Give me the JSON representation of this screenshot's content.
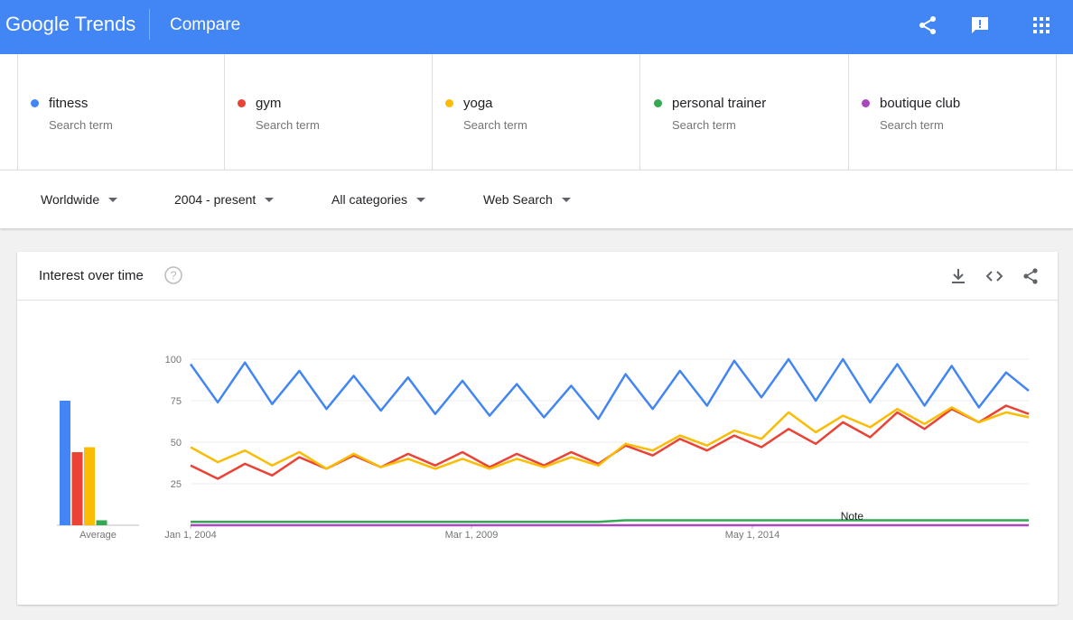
{
  "header": {
    "logo_text": "Google Trends",
    "title": "Compare",
    "icons": [
      "share-icon",
      "feedback-icon",
      "apps-icon"
    ],
    "color": "#4285f4"
  },
  "terms": [
    {
      "name": "fitness",
      "subtitle": "Search term",
      "color": "#4285f4"
    },
    {
      "name": "gym",
      "subtitle": "Search term",
      "color": "#ea4335"
    },
    {
      "name": "yoga",
      "subtitle": "Search term",
      "color": "#fbbc04"
    },
    {
      "name": "personal trainer",
      "subtitle": "Search term",
      "color": "#34a853"
    },
    {
      "name": "boutique club",
      "subtitle": "Search term",
      "color": "#ab47bc"
    }
  ],
  "filters": {
    "region": "Worldwide",
    "time": "2004 - present",
    "category": "All categories",
    "search_type": "Web Search"
  },
  "card": {
    "title": "Interest over time",
    "icons": [
      "help-icon",
      "download-icon",
      "embed-icon",
      "share-icon"
    ]
  },
  "chart_data": {
    "type": "line",
    "title": "Interest over time",
    "ylim": [
      0,
      100
    ],
    "y_ticks": [
      25,
      50,
      75,
      100
    ],
    "x_ticks": [
      "Jan 1, 2004",
      "Mar 1, 2009",
      "May 1, 2014"
    ],
    "x_range": [
      "2004-01",
      "2019-06"
    ],
    "grid": true,
    "annotation": "Note",
    "average": {
      "label": "Average",
      "values": [
        75,
        44,
        47,
        3,
        0
      ]
    },
    "series": [
      {
        "name": "fitness",
        "color": "#4285f4",
        "x": [
          "2004-01",
          "2004-07",
          "2005-01",
          "2005-07",
          "2006-01",
          "2006-07",
          "2007-01",
          "2007-07",
          "2008-01",
          "2008-07",
          "2009-01",
          "2009-07",
          "2010-01",
          "2010-07",
          "2011-01",
          "2011-07",
          "2012-01",
          "2012-07",
          "2013-01",
          "2013-07",
          "2014-01",
          "2014-07",
          "2015-01",
          "2015-07",
          "2016-01",
          "2016-07",
          "2017-01",
          "2017-07",
          "2018-01",
          "2018-07",
          "2019-01",
          "2019-06"
        ],
        "values": [
          97,
          74,
          98,
          73,
          93,
          70,
          90,
          69,
          89,
          67,
          87,
          66,
          85,
          65,
          84,
          64,
          91,
          70,
          93,
          72,
          99,
          77,
          100,
          75,
          100,
          74,
          97,
          72,
          96,
          71,
          92,
          81
        ]
      },
      {
        "name": "gym",
        "color": "#ea4335",
        "x": [
          "2004-01",
          "2004-07",
          "2005-01",
          "2005-07",
          "2006-01",
          "2006-07",
          "2007-01",
          "2007-07",
          "2008-01",
          "2008-07",
          "2009-01",
          "2009-07",
          "2010-01",
          "2010-07",
          "2011-01",
          "2011-07",
          "2012-01",
          "2012-07",
          "2013-01",
          "2013-07",
          "2014-01",
          "2014-07",
          "2015-01",
          "2015-07",
          "2016-01",
          "2016-07",
          "2017-01",
          "2017-07",
          "2018-01",
          "2018-07",
          "2019-01",
          "2019-06"
        ],
        "values": [
          36,
          28,
          37,
          30,
          41,
          34,
          42,
          35,
          43,
          36,
          44,
          35,
          43,
          36,
          44,
          37,
          48,
          42,
          52,
          45,
          54,
          47,
          58,
          49,
          62,
          53,
          68,
          58,
          70,
          62,
          72,
          67
        ]
      },
      {
        "name": "yoga",
        "color": "#fbbc04",
        "x": [
          "2004-01",
          "2004-07",
          "2005-01",
          "2005-07",
          "2006-01",
          "2006-07",
          "2007-01",
          "2007-07",
          "2008-01",
          "2008-07",
          "2009-01",
          "2009-07",
          "2010-01",
          "2010-07",
          "2011-01",
          "2011-07",
          "2012-01",
          "2012-07",
          "2013-01",
          "2013-07",
          "2014-01",
          "2014-07",
          "2015-01",
          "2015-07",
          "2016-01",
          "2016-07",
          "2017-01",
          "2017-07",
          "2018-01",
          "2018-07",
          "2019-01",
          "2019-06"
        ],
        "values": [
          47,
          38,
          45,
          36,
          44,
          34,
          43,
          35,
          40,
          34,
          40,
          34,
          40,
          35,
          41,
          36,
          49,
          45,
          54,
          48,
          57,
          52,
          68,
          56,
          66,
          59,
          70,
          61,
          71,
          62,
          68,
          65
        ]
      },
      {
        "name": "personal trainer",
        "color": "#34a853",
        "x": [
          "2004-01",
          "2004-07",
          "2005-01",
          "2005-07",
          "2006-01",
          "2006-07",
          "2007-01",
          "2007-07",
          "2008-01",
          "2008-07",
          "2009-01",
          "2009-07",
          "2010-01",
          "2010-07",
          "2011-01",
          "2011-07",
          "2012-01",
          "2012-07",
          "2013-01",
          "2013-07",
          "2014-01",
          "2014-07",
          "2015-01",
          "2015-07",
          "2016-01",
          "2016-07",
          "2017-01",
          "2017-07",
          "2018-01",
          "2018-07",
          "2019-01",
          "2019-06"
        ],
        "values": [
          2,
          2,
          2,
          2,
          2,
          2,
          2,
          2,
          2,
          2,
          2,
          2,
          2,
          2,
          2,
          2,
          3,
          3,
          3,
          3,
          3,
          3,
          3,
          3,
          3,
          3,
          3,
          3,
          3,
          3,
          3,
          3
        ]
      },
      {
        "name": "boutique club",
        "color": "#ab47bc",
        "x": [
          "2004-01",
          "2019-06"
        ],
        "values": [
          0,
          0
        ]
      }
    ]
  }
}
